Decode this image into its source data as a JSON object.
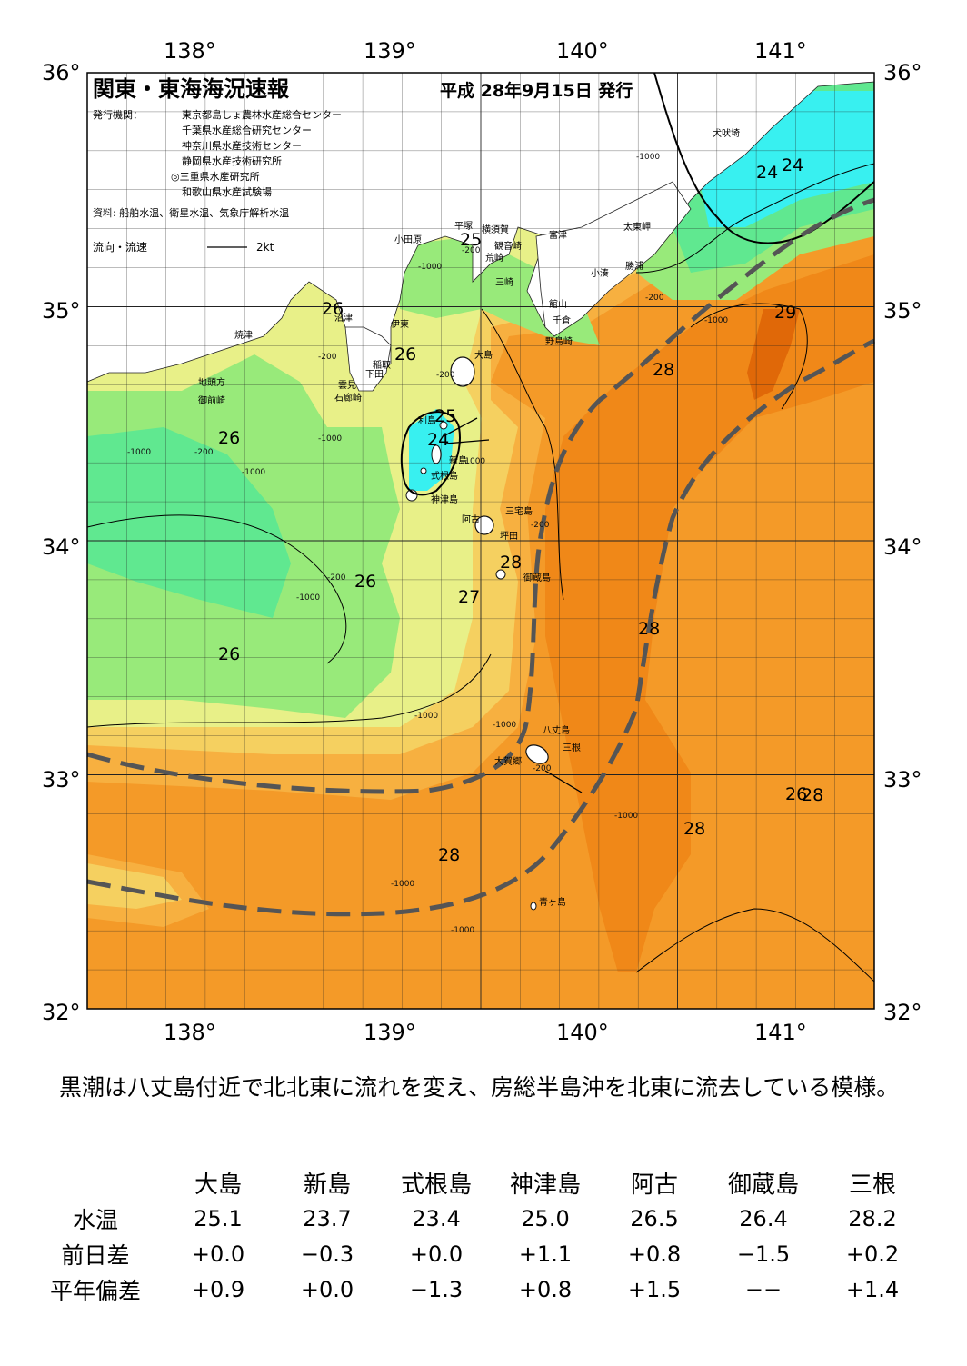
{
  "header": {
    "title": "関東・東海海況速報",
    "date": "平成 28年9月15日 発行",
    "issuer_label": "発行機関：",
    "issuers": [
      "東京都島しょ農林水産総合センター",
      "千葉県水産総合研究センター",
      "神奈川県水産技術センター",
      "静岡県水産技術研究所",
      "◎三重県水産研究所",
      "和歌山県水産試験場"
    ],
    "sources": "資料: 船舶水温、衛星水温、気象庁解析水温",
    "flow_legend": "流向・流速",
    "flow_legend_unit": "2kt"
  },
  "axes": {
    "lon_labels": [
      "138°",
      "139°",
      "140°",
      "141°"
    ],
    "lat_labels": [
      "36°",
      "35°",
      "34°",
      "33°",
      "32°"
    ]
  },
  "temperature_labels": [
    "25",
    "24",
    "26",
    "26",
    "25",
    "24",
    "26",
    "28",
    "29",
    "24",
    "26",
    "28",
    "26",
    "27",
    "28",
    "26",
    "28",
    "28",
    "28"
  ],
  "depth_labels": [
    "-200",
    "-200",
    "-1000",
    "-1000",
    "-200",
    "-1000",
    "-200",
    "-1000",
    "-200",
    "-1000",
    "-1000",
    "-200",
    "-1000",
    "-200",
    "-1000",
    "-1000",
    "-1000",
    "-1000",
    "-1000",
    "-1000",
    "-200"
  ],
  "place_names": [
    "犬吠埼",
    "太東岬",
    "勝浦",
    "小湊",
    "富津",
    "館山",
    "千倉",
    "野島崎",
    "横須賀",
    "観音崎",
    "平塚",
    "荒崎",
    "三崎",
    "小田原",
    "伊東",
    "稲取",
    "下田",
    "雲見",
    "石廊崎",
    "沼津",
    "焼津",
    "地頭方",
    "御前崎",
    "大島",
    "利島",
    "新島",
    "式根島",
    "神津島",
    "三宅島",
    "阿古",
    "坪田",
    "御蔵島",
    "八丈島",
    "三根",
    "大賀郷",
    "青ヶ島"
  ],
  "summary": "黒潮は八丈島付近で北北東に流れを変え、房総半島沖を北東に流去している模様。",
  "observation_table": {
    "stations": [
      "大島",
      "新島",
      "式根島",
      "神津島",
      "阿古",
      "御蔵島",
      "三根"
    ],
    "rows": [
      {
        "label": "水温",
        "values": [
          "25.1",
          "23.7",
          "23.4",
          "25.0",
          "26.5",
          "26.4",
          "28.2"
        ]
      },
      {
        "label": "前日差",
        "values": [
          "+0.0",
          "−0.3",
          "+0.0",
          "+1.1",
          "+0.8",
          "−1.5",
          "+0.2"
        ]
      },
      {
        "label": "平年偏差",
        "values": [
          "+0.9",
          "+0.0",
          "−1.3",
          "+0.8",
          "+1.5",
          "−−",
          "+1.4"
        ]
      }
    ]
  },
  "colors": {
    "temp_24": "#38f0f0",
    "temp_25": "#60e890",
    "temp_26": "#98ea7a",
    "temp_26_5": "#e8f088",
    "temp_27": "#f5d060",
    "temp_27_5": "#f7b040",
    "temp_28": "#f49a28",
    "temp_28_5": "#f08818",
    "temp_29": "#e06808",
    "kuroshio_axis": "#555555",
    "land": "#ffffff"
  }
}
